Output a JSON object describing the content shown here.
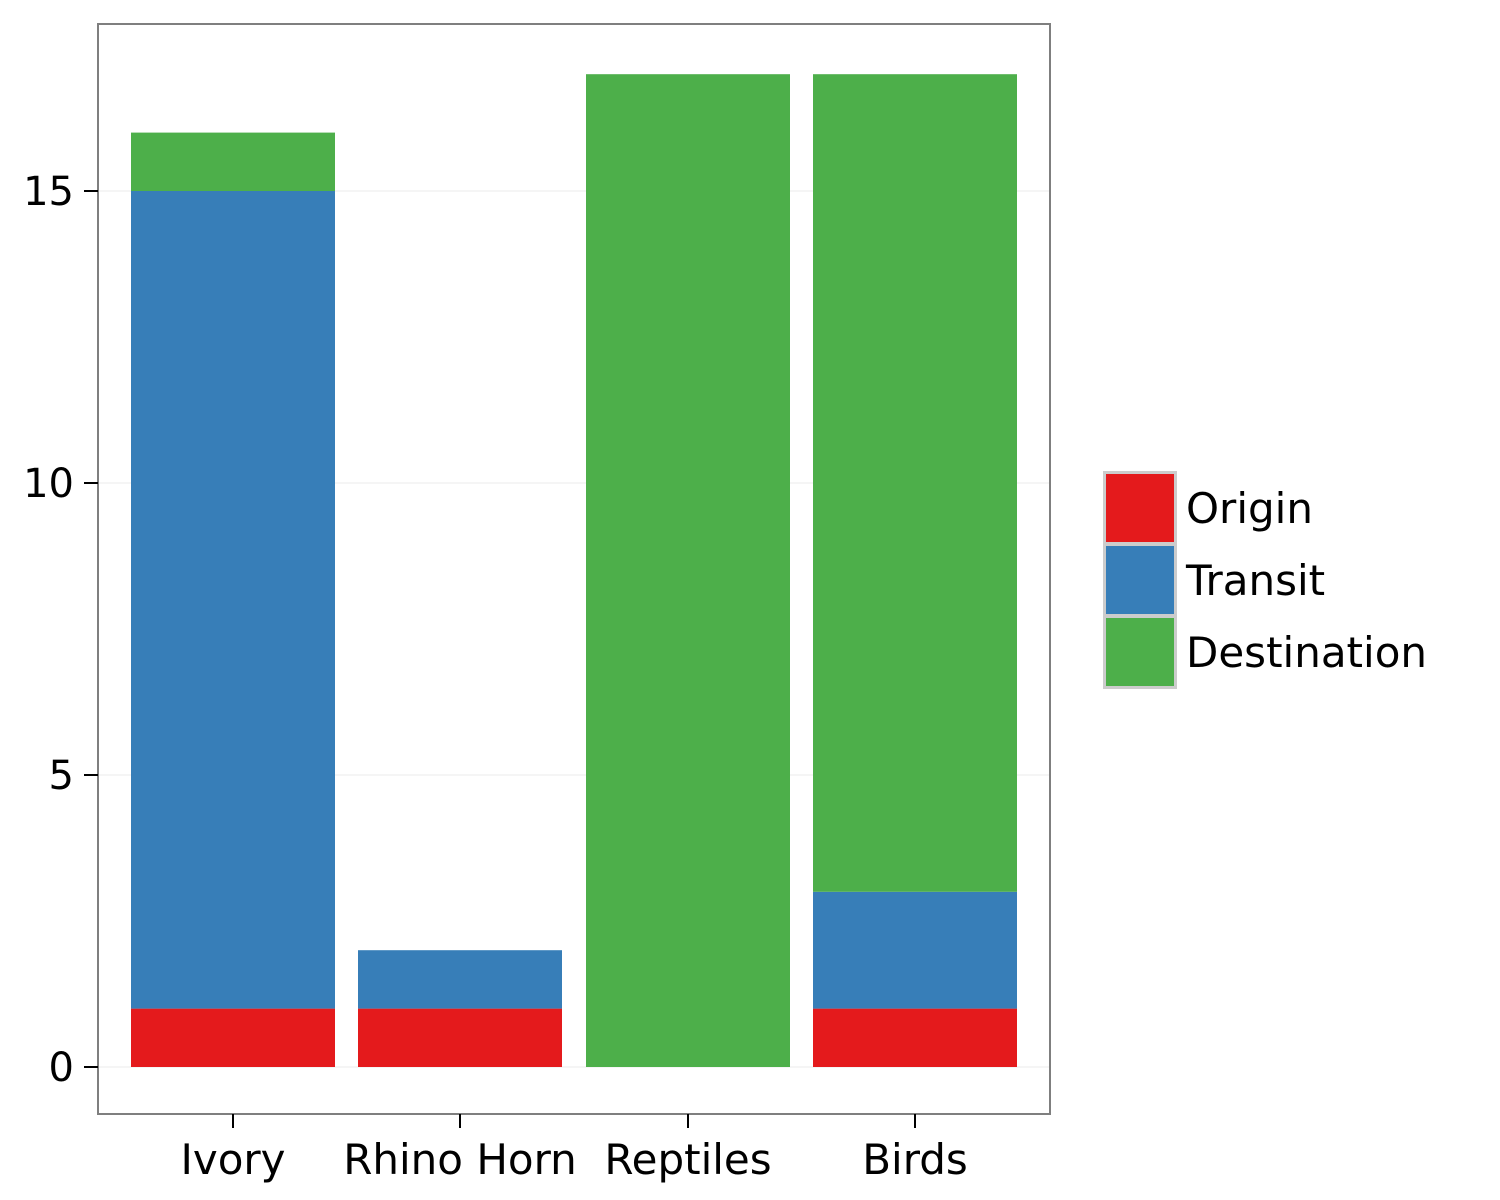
{
  "chart_data": {
    "type": "bar",
    "stacked": true,
    "categories": [
      "Ivory",
      "Rhino Horn",
      "Reptiles",
      "Birds"
    ],
    "series": [
      {
        "name": "Origin",
        "color": "#e41a1c",
        "values": [
          1,
          1,
          0,
          1
        ]
      },
      {
        "name": "Transit",
        "color": "#377eb8",
        "values": [
          14,
          1,
          0,
          2
        ]
      },
      {
        "name": "Destination",
        "color": "#4daf4a",
        "values": [
          1,
          0,
          17,
          14
        ]
      }
    ],
    "title": "",
    "xlabel": "",
    "ylabel": "",
    "ylim": [
      0,
      17
    ],
    "yticks": [
      0,
      5,
      10,
      15
    ],
    "grid": true,
    "legend": "right"
  }
}
